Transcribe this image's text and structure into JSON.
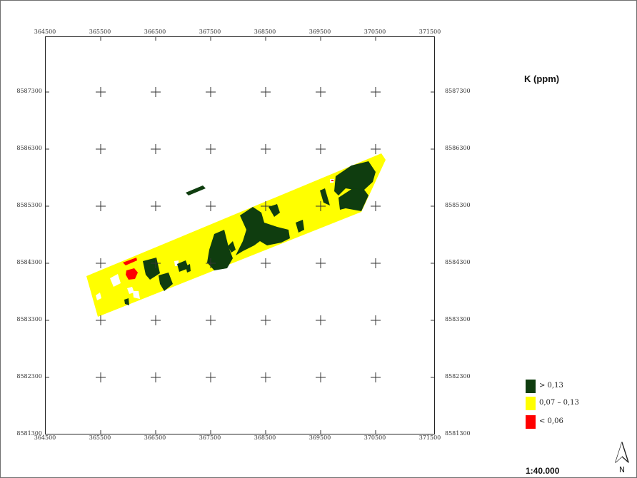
{
  "map": {
    "title": "K (ppm)",
    "scale": "1:40.000",
    "north_label": "N",
    "x_ticks": [
      "364500",
      "365500",
      "366500",
      "367500",
      "368500",
      "369500",
      "370500",
      "371500"
    ],
    "y_ticks": [
      "8587300",
      "8586300",
      "8585300",
      "8584300",
      "8583300",
      "8582300",
      "8581300"
    ]
  },
  "legend": {
    "items": [
      {
        "label": "> 0,13",
        "color": "#0f3d0f"
      },
      {
        "label": "0,07 – 0,13",
        "color": "#ffff00"
      },
      {
        "label": "< 0,06",
        "color": "#ff0000"
      }
    ]
  },
  "colors": {
    "high": "#0f3d0f",
    "mid": "#ffff00",
    "low": "#ff0000",
    "nodata": "#ffffff"
  }
}
